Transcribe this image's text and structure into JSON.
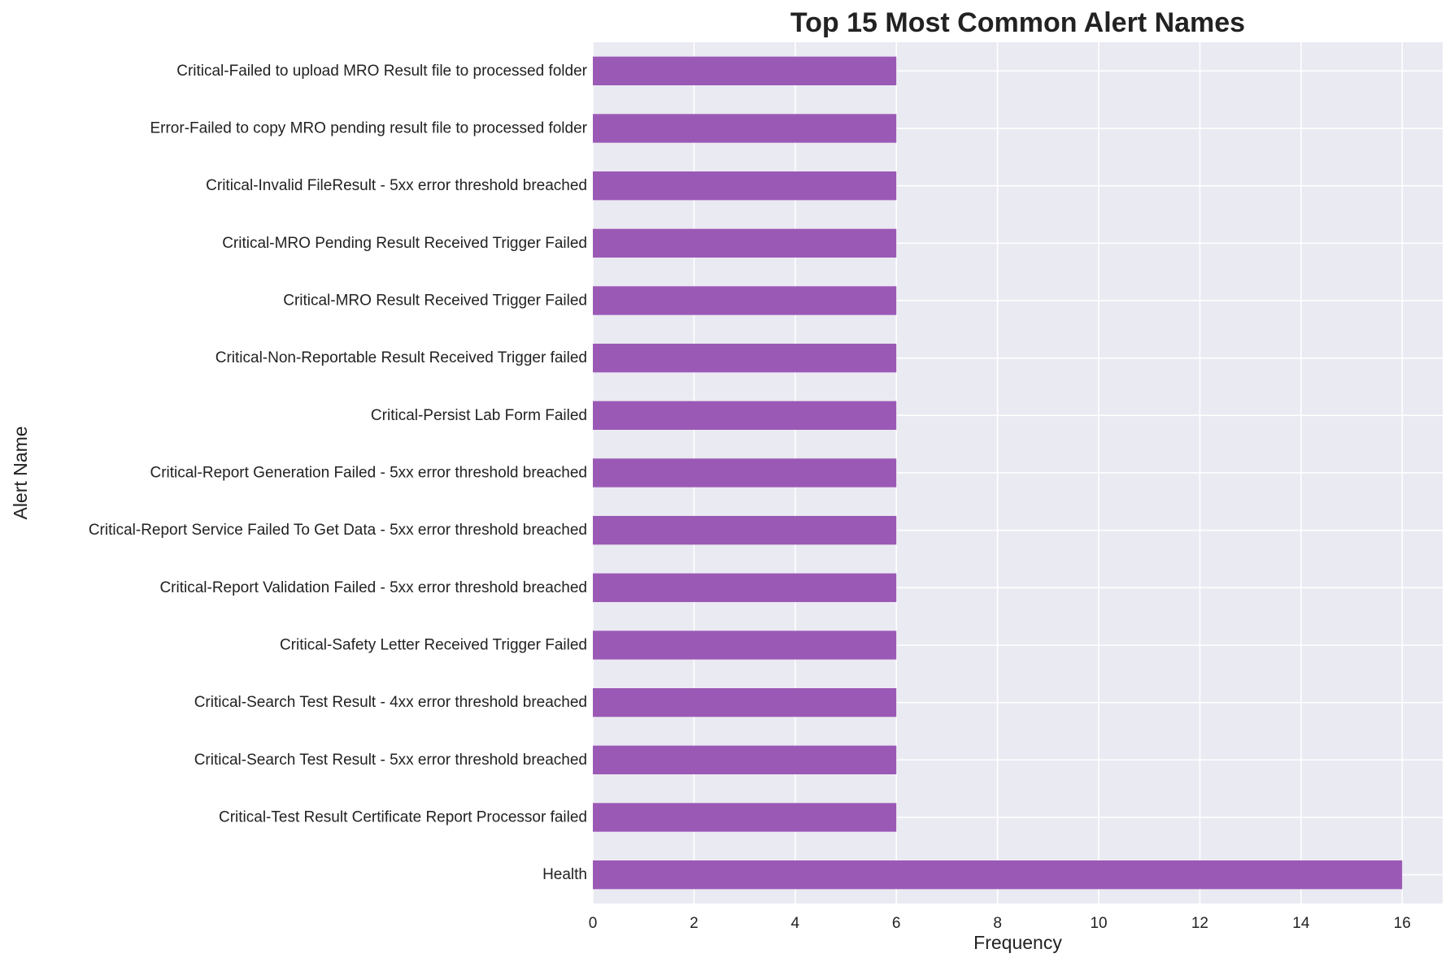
{
  "chart_data": {
    "type": "bar",
    "orientation": "horizontal",
    "title": "Top 15 Most Common Alert Names",
    "xlabel": "Frequency",
    "ylabel": "Alert Name",
    "xlim": [
      0,
      16.8
    ],
    "xticks": [
      0,
      2,
      4,
      6,
      8,
      10,
      12,
      14,
      16
    ],
    "grid": true,
    "colors": {
      "bar": "#9b59b6",
      "plot_background": "#eaeaf2",
      "grid": "#ffffff",
      "text": "#222222"
    },
    "categories": [
      "Critical-Failed to upload MRO Result file to processed folder",
      "Error-Failed to copy MRO pending result file to processed folder",
      "Critical-Invalid FileResult - 5xx error threshold breached",
      "Critical-MRO Pending Result Received Trigger Failed",
      "Critical-MRO Result Received Trigger Failed",
      "Critical-Non-Reportable Result Received Trigger failed",
      "Critical-Persist Lab Form Failed",
      "Critical-Report Generation Failed - 5xx error threshold breached",
      "Critical-Report Service Failed To Get Data - 5xx error threshold breached",
      "Critical-Report Validation Failed - 5xx error threshold breached",
      "Critical-Safety Letter Received Trigger Failed",
      "Critical-Search Test Result - 4xx error threshold breached",
      "Critical-Search Test Result - 5xx error threshold breached",
      "Critical-Test Result Certificate Report Processor failed",
      "Health"
    ],
    "values": [
      6,
      6,
      6,
      6,
      6,
      6,
      6,
      6,
      6,
      6,
      6,
      6,
      6,
      6,
      16
    ]
  }
}
